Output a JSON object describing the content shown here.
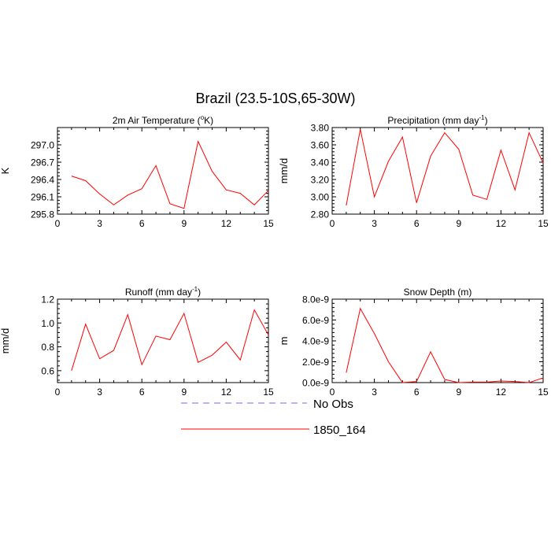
{
  "figure": {
    "title": "Brazil (23.5-10S,65-30W)"
  },
  "legend": {
    "items": [
      {
        "label": "No Obs",
        "color": "#6b6bff",
        "style": "dashed"
      },
      {
        "label": "1850_164",
        "color": "#ff0000",
        "style": "solid"
      }
    ]
  },
  "chart_data": [
    {
      "type": "line",
      "title_main": "2m Air Temperature (",
      "title_sup": "o",
      "title_tail": "K)",
      "ylabel": "K",
      "xlim": [
        0,
        15
      ],
      "ylim": [
        295.8,
        297.3
      ],
      "xticks": [
        0,
        3,
        6,
        9,
        12,
        15
      ],
      "yticks": [
        295.8,
        296.1,
        296.4,
        296.7,
        297.0
      ],
      "ytick_labels": [
        "295.8",
        "296.1",
        "296.4",
        "296.7",
        "297.0"
      ],
      "series": [
        {
          "name": "1850_164",
          "color": "#ff0000",
          "x": [
            1,
            2,
            3,
            4,
            5,
            6,
            7,
            8,
            9,
            10,
            11,
            12,
            13,
            14,
            15
          ],
          "y": [
            296.46,
            296.38,
            296.15,
            295.96,
            296.13,
            296.24,
            296.64,
            295.98,
            295.9,
            297.06,
            296.54,
            296.22,
            296.16,
            295.96,
            296.21
          ]
        }
      ]
    },
    {
      "type": "line",
      "title_main": "Precipitation (mm day",
      "title_sup": "-1",
      "title_tail": ")",
      "ylabel": "mm/d",
      "xlim": [
        0,
        15
      ],
      "ylim": [
        2.8,
        3.8
      ],
      "xticks": [
        0,
        3,
        6,
        9,
        12,
        15
      ],
      "yticks": [
        2.8,
        3.0,
        3.2,
        3.4,
        3.6,
        3.8
      ],
      "ytick_labels": [
        "2.80",
        "3.00",
        "3.20",
        "3.40",
        "3.60",
        "3.80"
      ],
      "series": [
        {
          "name": "1850_164",
          "color": "#ff0000",
          "x": [
            1,
            2,
            3,
            4,
            5,
            6,
            7,
            8,
            9,
            10,
            11,
            12,
            13,
            14,
            15
          ],
          "y": [
            2.9,
            3.78,
            3.0,
            3.41,
            3.69,
            2.93,
            3.47,
            3.74,
            3.55,
            3.02,
            2.97,
            3.54,
            3.08,
            3.74,
            3.39
          ]
        }
      ]
    },
    {
      "type": "line",
      "title_main": "Runoff (mm day",
      "title_sup": "-1",
      "title_tail": ")",
      "ylabel": "mm/d",
      "xlim": [
        0,
        15
      ],
      "ylim": [
        0.5,
        1.2
      ],
      "xticks": [
        0,
        3,
        6,
        9,
        12,
        15
      ],
      "yticks": [
        0.6,
        0.8,
        1.0,
        1.2
      ],
      "ytick_labels": [
        "0.6",
        "0.8",
        "1.0",
        "1.2"
      ],
      "series": [
        {
          "name": "1850_164",
          "color": "#ff0000",
          "x": [
            1,
            2,
            3,
            4,
            5,
            6,
            7,
            8,
            9,
            10,
            11,
            12,
            13,
            14,
            15
          ],
          "y": [
            0.6,
            0.99,
            0.7,
            0.77,
            1.07,
            0.65,
            0.89,
            0.86,
            1.08,
            0.67,
            0.73,
            0.84,
            0.69,
            1.11,
            0.9
          ]
        }
      ]
    },
    {
      "type": "line",
      "title_main": "Snow Depth (m)",
      "title_sup": "",
      "title_tail": "",
      "ylabel": "m",
      "xlim": [
        0,
        15
      ],
      "ylim": [
        0,
        8e-09
      ],
      "xticks": [
        0,
        3,
        6,
        9,
        12,
        15
      ],
      "yticks": [
        0,
        2e-09,
        4e-09,
        6e-09,
        8e-09
      ],
      "ytick_labels": [
        "0.0e-9",
        "2.0e-9",
        "4.0e-9",
        "6.0e-9",
        "8.0e-9"
      ],
      "series": [
        {
          "name": "1850_164",
          "color": "#ff0000",
          "x": [
            1,
            2,
            3,
            4,
            5,
            6,
            7,
            8,
            9,
            10,
            11,
            12,
            13,
            14,
            15
          ],
          "y": [
            9.5e-10,
            7.1e-09,
            4.7e-09,
            2e-09,
            0,
            1e-10,
            2.95e-09,
            3e-10,
            0,
            5e-11,
            5e-11,
            1.5e-10,
            1e-10,
            0,
            4.5e-10
          ]
        }
      ]
    }
  ]
}
